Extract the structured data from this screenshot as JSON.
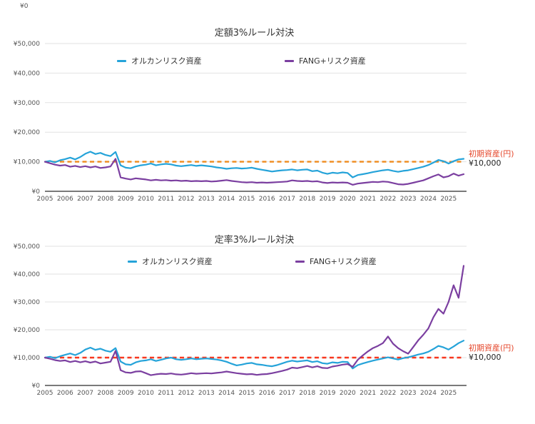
{
  "page": {
    "background": "#FFFFFF"
  },
  "stray_label": "¥0",
  "x_quarterly": [
    2005,
    2005.25,
    2005.5,
    2005.75,
    2006,
    2006.25,
    2006.5,
    2006.75,
    2007,
    2007.25,
    2007.5,
    2007.75,
    2008,
    2008.25,
    2008.5,
    2008.75,
    2009,
    2009.25,
    2009.5,
    2009.75,
    2010,
    2010.25,
    2010.5,
    2010.75,
    2011,
    2011.25,
    2011.5,
    2011.75,
    2012,
    2012.25,
    2012.5,
    2012.75,
    2013,
    2013.25,
    2013.5,
    2013.75,
    2014,
    2014.25,
    2014.5,
    2014.75,
    2015,
    2015.25,
    2015.5,
    2015.75,
    2016,
    2016.25,
    2016.5,
    2016.75,
    2017,
    2017.25,
    2017.5,
    2017.75,
    2018,
    2018.25,
    2018.5,
    2018.75,
    2019,
    2019.25,
    2019.5,
    2019.75,
    2020,
    2020.25,
    2020.5,
    2020.75,
    2021,
    2021.25,
    2021.5,
    2021.75,
    2022,
    2022.25,
    2022.5,
    2022.75,
    2023,
    2023.25,
    2023.5,
    2023.75,
    2024,
    2024.25,
    2024.5,
    2024.75,
    2025,
    2025.25,
    2025.5,
    2025.75
  ],
  "chart_data": [
    {
      "type": "line",
      "title": "定額3%ルール対決",
      "x_ref": "x_quarterly",
      "series": [
        {
          "name": "オルカンリスク資産",
          "color": "#25A3D9",
          "values": [
            10000,
            10300,
            9800,
            10500,
            10900,
            11400,
            10800,
            11600,
            12700,
            13400,
            12600,
            13000,
            12300,
            11900,
            13300,
            8800,
            8000,
            7800,
            8400,
            8800,
            9000,
            9400,
            8800,
            9100,
            9300,
            9100,
            8700,
            8500,
            8700,
            8900,
            8600,
            8800,
            8600,
            8400,
            8100,
            7900,
            7600,
            7800,
            7900,
            7700,
            7800,
            8000,
            7600,
            7300,
            7000,
            6700,
            6900,
            7100,
            7200,
            7400,
            7100,
            7300,
            7400,
            6800,
            7000,
            6300,
            5900,
            6300,
            6100,
            6400,
            6200,
            4700,
            5500,
            5800,
            6100,
            6500,
            6800,
            7100,
            7300,
            6900,
            6600,
            6900,
            7100,
            7500,
            7900,
            8300,
            8900,
            9700,
            10600,
            10200,
            9400,
            10200,
            10800,
            11000
          ]
        },
        {
          "name": "FANG+リスク資産",
          "color": "#7B3FA0",
          "values": [
            10000,
            9500,
            9000,
            8700,
            8900,
            8300,
            8600,
            8200,
            8500,
            8100,
            8400,
            7900,
            8100,
            8400,
            11000,
            4700,
            4300,
            4000,
            4400,
            4200,
            4000,
            3700,
            3900,
            3700,
            3800,
            3600,
            3700,
            3500,
            3600,
            3400,
            3500,
            3400,
            3500,
            3300,
            3400,
            3600,
            3800,
            3500,
            3300,
            3100,
            3000,
            3100,
            2900,
            3000,
            2900,
            3000,
            3100,
            3200,
            3300,
            3700,
            3500,
            3400,
            3500,
            3300,
            3400,
            3000,
            2800,
            3000,
            2900,
            3000,
            2900,
            2200,
            2600,
            2800,
            3000,
            3200,
            3100,
            3300,
            3200,
            2800,
            2400,
            2300,
            2500,
            2900,
            3300,
            3700,
            4400,
            5100,
            5700,
            4700,
            5100,
            6000,
            5300,
            5800
          ]
        }
      ],
      "baseline": {
        "value": 10000,
        "style": "dashed",
        "color": "#EF8A1C",
        "label": "初期資産(円)",
        "value_label": "¥10,000",
        "label_color": "#E5472B"
      },
      "ylim": [
        0,
        50000
      ],
      "yticks": {
        "values": [
          0,
          10000,
          20000,
          30000,
          40000,
          50000
        ],
        "labels": [
          "¥0",
          "¥10,000",
          "¥20,000",
          "¥30,000",
          "¥40,000",
          "¥50,000"
        ]
      },
      "xticks": {
        "values": [
          2005,
          2006,
          2007,
          2008,
          2009,
          2010,
          2011,
          2012,
          2013,
          2014,
          2015,
          2016,
          2017,
          2018,
          2019,
          2020,
          2021,
          2022,
          2023,
          2024,
          2025
        ],
        "labels": [
          "2005",
          "2006",
          "2007",
          "2008",
          "2009",
          "2010",
          "2011",
          "2012",
          "2013",
          "2014",
          "2015",
          "2016",
          "2017",
          "2018",
          "2019",
          "2020",
          "2021",
          "2022",
          "2023",
          "2024",
          "2025"
        ]
      },
      "grid": true,
      "legend_position": "top-inside"
    },
    {
      "type": "line",
      "title": "定率3%ルール対決",
      "x_ref": "x_quarterly",
      "series": [
        {
          "name": "オルカンリスク資産",
          "color": "#25A3D9",
          "values": [
            10000,
            10300,
            9800,
            10500,
            11000,
            11500,
            10900,
            11700,
            12900,
            13600,
            12800,
            13200,
            12500,
            12100,
            13400,
            8600,
            7600,
            7400,
            8300,
            8800,
            9000,
            9400,
            8800,
            9200,
            9700,
            10000,
            9400,
            9200,
            9400,
            9700,
            9400,
            9600,
            9700,
            9500,
            9300,
            9000,
            8500,
            7800,
            7200,
            7500,
            7900,
            8100,
            7600,
            7400,
            7100,
            6900,
            7300,
            7900,
            8500,
            8900,
            8600,
            8800,
            9000,
            8400,
            8700,
            8000,
            7800,
            8300,
            8100,
            8500,
            8400,
            6100,
            7300,
            7900,
            8400,
            8900,
            9300,
            9700,
            10100,
            9700,
            9300,
            9800,
            10100,
            10600,
            11100,
            11500,
            12100,
            13100,
            14200,
            13700,
            12900,
            14000,
            15200,
            16100
          ]
        },
        {
          "name": "FANG+リスク資産",
          "color": "#7B3FA0",
          "values": [
            10000,
            9600,
            9100,
            8800,
            9000,
            8400,
            8800,
            8300,
            8700,
            8200,
            8600,
            7900,
            8200,
            8500,
            12400,
            5500,
            4700,
            4500,
            5000,
            5100,
            4400,
            3700,
            4000,
            4200,
            4100,
            4300,
            4000,
            3900,
            4100,
            4400,
            4200,
            4300,
            4400,
            4300,
            4500,
            4700,
            5000,
            4700,
            4400,
            4200,
            4000,
            4100,
            3800,
            4000,
            4100,
            4400,
            4800,
            5200,
            5700,
            6400,
            6200,
            6600,
            7000,
            6500,
            6900,
            6300,
            6200,
            6800,
            7100,
            7500,
            7700,
            6700,
            9200,
            10800,
            12200,
            13400,
            14200,
            15200,
            17600,
            15000,
            13400,
            12300,
            11400,
            13800,
            16200,
            18200,
            20500,
            24500,
            27500,
            25800,
            30000,
            36000,
            31500,
            43000
          ]
        }
      ],
      "baseline": {
        "value": 10000,
        "style": "dashed",
        "color": "#F8381F",
        "label": "初期資産(円)",
        "value_label": "¥10,000",
        "label_color": "#E5472B"
      },
      "ylim": [
        0,
        50000
      ],
      "yticks": {
        "values": [
          0,
          10000,
          20000,
          30000,
          40000,
          50000
        ],
        "labels": [
          "¥0",
          "¥10,000",
          "¥20,000",
          "¥30,000",
          "¥40,000",
          "¥50,000"
        ]
      },
      "xticks": {
        "values": [
          2005,
          2006,
          2007,
          2008,
          2009,
          2010,
          2011,
          2012,
          2013,
          2014,
          2015,
          2016,
          2017,
          2018,
          2019,
          2020,
          2021,
          2022,
          2023,
          2024,
          2025
        ],
        "labels": [
          "2005",
          "2006",
          "2007",
          "2008",
          "2009",
          "2010",
          "2011",
          "2012",
          "2013",
          "2014",
          "2015",
          "2016",
          "2017",
          "2018",
          "2019",
          "2020",
          "2021",
          "2022",
          "2023",
          "2024",
          "2025"
        ]
      },
      "grid": true,
      "legend_position": "top-inside"
    }
  ]
}
